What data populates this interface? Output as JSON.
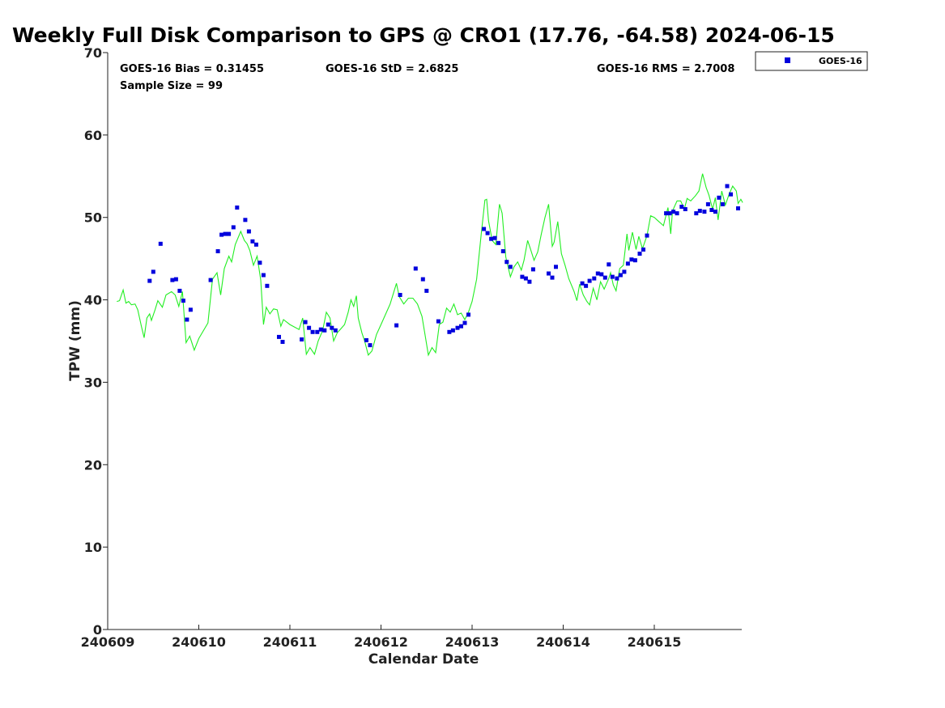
{
  "chart_data": {
    "type": "scatter",
    "title": "Weekly Full Disk Comparison to GPS @ CRO1 (17.76, -64.58) 2024-06-15",
    "xlabel": "Calendar Date",
    "ylabel": "TPW (mm)",
    "xlim": [
      0,
      6.95
    ],
    "ylim": [
      0,
      70
    ],
    "x_tick_labels": [
      "240609",
      "240610",
      "240611",
      "240612",
      "240613",
      "240614",
      "240615"
    ],
    "y_ticks": [
      0,
      10,
      20,
      30,
      40,
      50,
      60,
      70
    ],
    "grid": false,
    "legend_position": "top-right",
    "stats": {
      "bias": "GOES-16 Bias = 0.31455",
      "std": "GOES-16 StD = 2.6825",
      "rms": "GOES-16 RMS = 2.7008",
      "sample_size": "Sample Size = 99"
    },
    "colors": {
      "goes": "#0000dd",
      "gps": "#22ee22"
    },
    "series": [
      {
        "name": "GOES-16",
        "kind": "scatter",
        "color": "#0000dd",
        "points": [
          [
            0.46,
            42.3
          ],
          [
            0.5,
            43.4
          ],
          [
            0.58,
            46.8
          ],
          [
            0.71,
            42.4
          ],
          [
            0.75,
            42.5
          ],
          [
            0.79,
            41.1
          ],
          [
            0.83,
            39.9
          ],
          [
            0.87,
            37.6
          ],
          [
            0.91,
            38.8
          ],
          [
            1.13,
            42.4
          ],
          [
            1.21,
            45.9
          ],
          [
            1.25,
            47.9
          ],
          [
            1.29,
            48.0
          ],
          [
            1.33,
            48.0
          ],
          [
            1.38,
            48.8
          ],
          [
            1.42,
            51.2
          ],
          [
            1.51,
            49.7
          ],
          [
            1.55,
            48.3
          ],
          [
            1.59,
            47.1
          ],
          [
            1.63,
            46.7
          ],
          [
            1.67,
            44.5
          ],
          [
            1.71,
            43.0
          ],
          [
            1.75,
            41.7
          ],
          [
            1.88,
            35.5
          ],
          [
            1.92,
            34.9
          ],
          [
            2.13,
            35.2
          ],
          [
            2.17,
            37.3
          ],
          [
            2.21,
            36.6
          ],
          [
            2.25,
            36.1
          ],
          [
            2.3,
            36.1
          ],
          [
            2.34,
            36.4
          ],
          [
            2.38,
            36.3
          ],
          [
            2.42,
            37.0
          ],
          [
            2.46,
            36.6
          ],
          [
            2.5,
            36.3
          ],
          [
            2.84,
            35.1
          ],
          [
            2.88,
            34.5
          ],
          [
            3.17,
            36.9
          ],
          [
            3.21,
            40.6
          ],
          [
            3.38,
            43.8
          ],
          [
            3.46,
            42.5
          ],
          [
            3.5,
            41.1
          ],
          [
            3.63,
            37.4
          ],
          [
            3.75,
            36.1
          ],
          [
            3.79,
            36.3
          ],
          [
            3.84,
            36.6
          ],
          [
            3.88,
            36.8
          ],
          [
            3.92,
            37.2
          ],
          [
            3.96,
            38.2
          ],
          [
            4.13,
            48.6
          ],
          [
            4.17,
            48.1
          ],
          [
            4.21,
            47.4
          ],
          [
            4.25,
            47.5
          ],
          [
            4.29,
            46.9
          ],
          [
            4.34,
            45.9
          ],
          [
            4.38,
            44.6
          ],
          [
            4.42,
            44.0
          ],
          [
            4.55,
            42.8
          ],
          [
            4.59,
            42.6
          ],
          [
            4.63,
            42.2
          ],
          [
            4.67,
            43.7
          ],
          [
            4.84,
            43.2
          ],
          [
            4.88,
            42.7
          ],
          [
            4.92,
            44.0
          ],
          [
            5.21,
            42.0
          ],
          [
            5.25,
            41.7
          ],
          [
            5.29,
            42.3
          ],
          [
            5.34,
            42.6
          ],
          [
            5.38,
            43.2
          ],
          [
            5.42,
            43.1
          ],
          [
            5.46,
            42.7
          ],
          [
            5.5,
            44.3
          ],
          [
            5.54,
            42.8
          ],
          [
            5.59,
            42.6
          ],
          [
            5.63,
            43.0
          ],
          [
            5.67,
            43.4
          ],
          [
            5.71,
            44.4
          ],
          [
            5.75,
            44.9
          ],
          [
            5.79,
            44.8
          ],
          [
            5.84,
            45.6
          ],
          [
            5.88,
            46.1
          ],
          [
            5.92,
            47.8
          ],
          [
            6.13,
            50.5
          ],
          [
            6.17,
            50.5
          ],
          [
            6.21,
            50.7
          ],
          [
            6.25,
            50.5
          ],
          [
            6.3,
            51.3
          ],
          [
            6.34,
            51.0
          ],
          [
            6.46,
            50.5
          ],
          [
            6.5,
            50.8
          ],
          [
            6.55,
            50.7
          ],
          [
            6.59,
            51.6
          ],
          [
            6.63,
            50.9
          ],
          [
            6.67,
            50.7
          ],
          [
            6.71,
            52.4
          ],
          [
            6.75,
            51.6
          ],
          [
            6.8,
            53.8
          ],
          [
            6.84,
            52.8
          ],
          [
            6.92,
            51.1
          ]
        ]
      },
      {
        "name": "GPS",
        "kind": "line",
        "color": "#22ee22",
        "points": [
          [
            0.1,
            39.8
          ],
          [
            0.13,
            39.9
          ],
          [
            0.17,
            41.2
          ],
          [
            0.2,
            39.6
          ],
          [
            0.23,
            39.8
          ],
          [
            0.26,
            39.4
          ],
          [
            0.3,
            39.5
          ],
          [
            0.33,
            38.8
          ],
          [
            0.37,
            36.8
          ],
          [
            0.4,
            35.4
          ],
          [
            0.43,
            37.8
          ],
          [
            0.46,
            38.3
          ],
          [
            0.48,
            37.5
          ],
          [
            0.52,
            38.8
          ],
          [
            0.55,
            39.9
          ],
          [
            0.6,
            39.1
          ],
          [
            0.64,
            40.6
          ],
          [
            0.7,
            41.0
          ],
          [
            0.74,
            40.6
          ],
          [
            0.78,
            39.2
          ],
          [
            0.82,
            41.0
          ],
          [
            0.86,
            34.8
          ],
          [
            0.9,
            35.6
          ],
          [
            0.95,
            33.9
          ],
          [
            1.0,
            35.3
          ],
          [
            1.1,
            37.2
          ],
          [
            1.15,
            42.5
          ],
          [
            1.2,
            43.3
          ],
          [
            1.24,
            40.6
          ],
          [
            1.28,
            43.8
          ],
          [
            1.33,
            45.3
          ],
          [
            1.36,
            44.6
          ],
          [
            1.4,
            46.7
          ],
          [
            1.46,
            48.3
          ],
          [
            1.5,
            47.2
          ],
          [
            1.53,
            46.8
          ],
          [
            1.56,
            46.0
          ],
          [
            1.6,
            44.2
          ],
          [
            1.64,
            45.3
          ],
          [
            1.68,
            42.4
          ],
          [
            1.71,
            37.0
          ],
          [
            1.74,
            39.1
          ],
          [
            1.78,
            38.3
          ],
          [
            1.82,
            38.9
          ],
          [
            1.86,
            38.8
          ],
          [
            1.9,
            36.8
          ],
          [
            1.93,
            37.6
          ],
          [
            2.0,
            37.0
          ],
          [
            2.1,
            36.4
          ],
          [
            2.14,
            37.8
          ],
          [
            2.18,
            33.4
          ],
          [
            2.22,
            34.2
          ],
          [
            2.27,
            33.4
          ],
          [
            2.31,
            35.0
          ],
          [
            2.36,
            36.3
          ],
          [
            2.4,
            38.5
          ],
          [
            2.44,
            37.8
          ],
          [
            2.48,
            35.0
          ],
          [
            2.52,
            36.0
          ],
          [
            2.56,
            36.5
          ],
          [
            2.6,
            37.0
          ],
          [
            2.64,
            38.5
          ],
          [
            2.67,
            40.0
          ],
          [
            2.7,
            39.2
          ],
          [
            2.73,
            40.5
          ],
          [
            2.75,
            37.8
          ],
          [
            2.79,
            36.0
          ],
          [
            2.82,
            35.0
          ],
          [
            2.86,
            33.3
          ],
          [
            2.9,
            33.8
          ],
          [
            2.95,
            35.8
          ],
          [
            3.0,
            37.0
          ],
          [
            3.1,
            39.5
          ],
          [
            3.17,
            42.0
          ],
          [
            3.2,
            40.4
          ],
          [
            3.25,
            39.5
          ],
          [
            3.3,
            40.2
          ],
          [
            3.35,
            40.2
          ],
          [
            3.4,
            39.5
          ],
          [
            3.45,
            38.0
          ],
          [
            3.48,
            36.0
          ],
          [
            3.52,
            33.3
          ],
          [
            3.56,
            34.2
          ],
          [
            3.6,
            33.6
          ],
          [
            3.64,
            37.0
          ],
          [
            3.68,
            37.3
          ],
          [
            3.72,
            39.0
          ],
          [
            3.76,
            38.5
          ],
          [
            3.8,
            39.5
          ],
          [
            3.84,
            38.2
          ],
          [
            3.88,
            38.4
          ],
          [
            3.92,
            37.6
          ],
          [
            3.96,
            38.5
          ],
          [
            4.0,
            39.8
          ],
          [
            4.05,
            42.5
          ],
          [
            4.1,
            48.0
          ],
          [
            4.14,
            52.1
          ],
          [
            4.16,
            52.2
          ],
          [
            4.18,
            49.6
          ],
          [
            4.22,
            47.2
          ],
          [
            4.26,
            46.7
          ],
          [
            4.3,
            51.6
          ],
          [
            4.33,
            50.5
          ],
          [
            4.37,
            45.2
          ],
          [
            4.42,
            42.8
          ],
          [
            4.46,
            44.0
          ],
          [
            4.5,
            44.6
          ],
          [
            4.54,
            43.6
          ],
          [
            4.57,
            44.8
          ],
          [
            4.61,
            47.2
          ],
          [
            4.64,
            46.2
          ],
          [
            4.68,
            44.8
          ],
          [
            4.72,
            45.8
          ],
          [
            4.76,
            48.0
          ],
          [
            4.8,
            50.0
          ],
          [
            4.84,
            51.6
          ],
          [
            4.88,
            46.5
          ],
          [
            4.9,
            47.0
          ],
          [
            4.94,
            49.5
          ],
          [
            4.98,
            45.6
          ],
          [
            5.02,
            44.2
          ],
          [
            5.06,
            42.6
          ],
          [
            5.12,
            41.0
          ],
          [
            5.15,
            39.9
          ],
          [
            5.18,
            41.9
          ],
          [
            5.22,
            40.6
          ],
          [
            5.26,
            39.8
          ],
          [
            5.29,
            39.4
          ],
          [
            5.33,
            41.4
          ],
          [
            5.37,
            40.0
          ],
          [
            5.41,
            42.2
          ],
          [
            5.45,
            41.3
          ],
          [
            5.5,
            42.6
          ],
          [
            5.52,
            43.3
          ],
          [
            5.55,
            41.8
          ],
          [
            5.58,
            41.1
          ],
          [
            5.62,
            43.8
          ],
          [
            5.66,
            44.2
          ],
          [
            5.7,
            48.0
          ],
          [
            5.72,
            46.0
          ],
          [
            5.76,
            48.2
          ],
          [
            5.8,
            46.1
          ],
          [
            5.83,
            47.7
          ],
          [
            5.87,
            46.2
          ],
          [
            5.92,
            47.8
          ],
          [
            5.96,
            50.2
          ],
          [
            6.0,
            50.0
          ],
          [
            6.05,
            49.5
          ],
          [
            6.1,
            49.0
          ],
          [
            6.15,
            51.2
          ],
          [
            6.18,
            48.0
          ],
          [
            6.2,
            50.8
          ],
          [
            6.25,
            52.0
          ],
          [
            6.29,
            52.0
          ],
          [
            6.33,
            51.0
          ],
          [
            6.36,
            52.3
          ],
          [
            6.4,
            52.0
          ],
          [
            6.45,
            52.6
          ],
          [
            6.49,
            53.2
          ],
          [
            6.53,
            55.3
          ],
          [
            6.57,
            53.6
          ],
          [
            6.6,
            52.7
          ],
          [
            6.64,
            51.0
          ],
          [
            6.67,
            52.4
          ],
          [
            6.7,
            49.7
          ],
          [
            6.74,
            53.2
          ],
          [
            6.78,
            51.5
          ],
          [
            6.82,
            52.8
          ],
          [
            6.86,
            53.8
          ],
          [
            6.9,
            53.2
          ],
          [
            6.92,
            51.7
          ],
          [
            6.95,
            52.2
          ],
          [
            6.97,
            51.8
          ]
        ]
      }
    ]
  },
  "legend": {
    "label": "GOES-16"
  }
}
